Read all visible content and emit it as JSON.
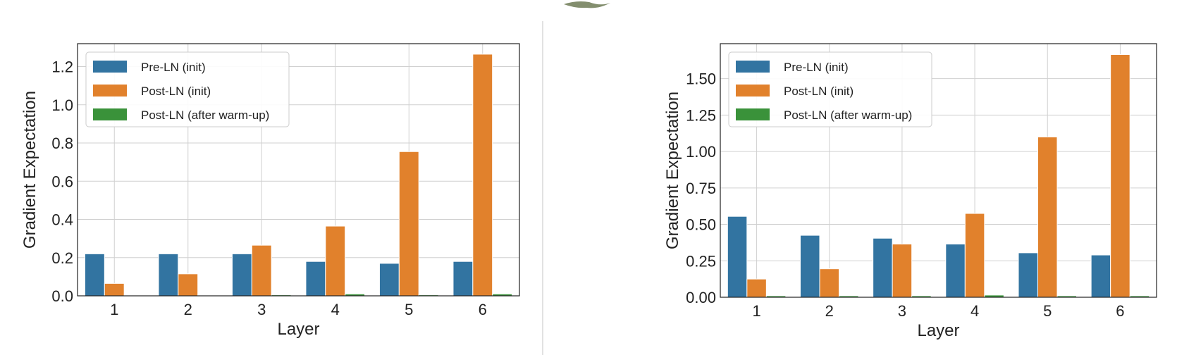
{
  "chart_data": [
    {
      "type": "bar",
      "categories": [
        "1",
        "2",
        "3",
        "4",
        "5",
        "6"
      ],
      "xlabel": "Layer",
      "ylabel": "Gradient Expectation",
      "ylim": [
        0,
        1.32
      ],
      "yticks": [
        "0.0",
        "0.2",
        "0.4",
        "0.6",
        "0.8",
        "1.0",
        "1.2"
      ],
      "ytick_values": [
        0,
        0.2,
        0.4,
        0.6,
        0.8,
        1.0,
        1.2
      ],
      "grid": true,
      "legend_position": "top-left",
      "series": [
        {
          "name": "Pre-LN (init)",
          "color": "#3274a1",
          "values": [
            0.22,
            0.22,
            0.22,
            0.18,
            0.17,
            0.18
          ]
        },
        {
          "name": "Post-LN (init)",
          "color": "#e1812c",
          "values": [
            0.065,
            0.115,
            0.265,
            0.365,
            0.755,
            1.265
          ]
        },
        {
          "name": "Post-LN (after warm-up)",
          "color": "#3a923a",
          "values": [
            0.002,
            0.002,
            0.005,
            0.01,
            0.005,
            0.01
          ]
        }
      ]
    },
    {
      "type": "bar",
      "categories": [
        "1",
        "2",
        "3",
        "4",
        "5",
        "6"
      ],
      "xlabel": "Layer",
      "ylabel": "Gradient Expectation",
      "ylim": [
        0,
        1.74
      ],
      "yticks": [
        "0.00",
        "0.25",
        "0.50",
        "0.75",
        "1.00",
        "1.25",
        "1.50"
      ],
      "ytick_values": [
        0,
        0.25,
        0.5,
        0.75,
        1.0,
        1.25,
        1.5
      ],
      "grid": true,
      "legend_position": "top-left",
      "series": [
        {
          "name": "Pre-LN (init)",
          "color": "#3274a1",
          "values": [
            0.555,
            0.425,
            0.405,
            0.365,
            0.305,
            0.29
          ]
        },
        {
          "name": "Post-LN (init)",
          "color": "#e1812c",
          "values": [
            0.125,
            0.195,
            0.365,
            0.575,
            1.1,
            1.665
          ]
        },
        {
          "name": "Post-LN (after warm-up)",
          "color": "#3a923a",
          "values": [
            0.01,
            0.01,
            0.01,
            0.015,
            0.01,
            0.01
          ]
        }
      ]
    }
  ]
}
